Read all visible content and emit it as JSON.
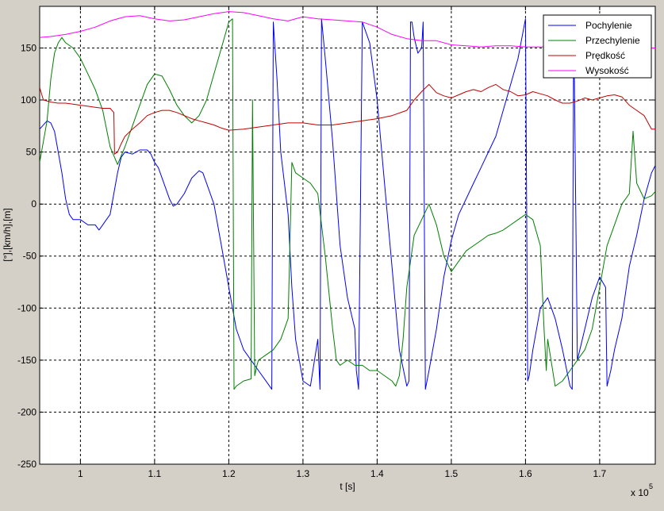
{
  "chart_data": {
    "type": "line",
    "title": "",
    "xlabel": "t [s]",
    "ylabel": "[°],[km/h],[m]",
    "x_multiplier_label": "x 10",
    "x_multiplier_exponent": "5",
    "xlim": [
      0.945,
      1.775
    ],
    "ylim": [
      -250,
      190
    ],
    "x_ticks": [
      1.0,
      1.1,
      1.2,
      1.3,
      1.4,
      1.5,
      1.6,
      1.7
    ],
    "x_tick_labels": [
      "1",
      "1.1",
      "1.2",
      "1.3",
      "1.4",
      "1.5",
      "1.6",
      "1.7"
    ],
    "y_ticks": [
      -250,
      -200,
      -150,
      -100,
      -50,
      0,
      50,
      100,
      150
    ],
    "y_tick_labels": [
      "-250",
      "-200",
      "-150",
      "-100",
      "-50",
      "0",
      "50",
      "100",
      "150"
    ],
    "grid": true,
    "legend_position": "top-right",
    "series": [
      {
        "name": "Pochylenie",
        "color": "#0000ff",
        "x": [
          0.945,
          0.955,
          0.96,
          0.965,
          0.97,
          0.975,
          0.98,
          0.985,
          0.99,
          1.0,
          1.01,
          1.02,
          1.025,
          1.03,
          1.035,
          1.04,
          1.045,
          1.05,
          1.055,
          1.06,
          1.07,
          1.08,
          1.09,
          1.095,
          1.1,
          1.105,
          1.11,
          1.12,
          1.125,
          1.13,
          1.14,
          1.15,
          1.16,
          1.165,
          1.17,
          1.18,
          1.19,
          1.2,
          1.21,
          1.22,
          1.23,
          1.24,
          1.25,
          1.258,
          1.26,
          1.265,
          1.27,
          1.28,
          1.285,
          1.29,
          1.3,
          1.31,
          1.32,
          1.323,
          1.325,
          1.33,
          1.34,
          1.345,
          1.35,
          1.36,
          1.37,
          1.372,
          1.375,
          1.38,
          1.39,
          1.4,
          1.41,
          1.42,
          1.43,
          1.44,
          1.443,
          1.445,
          1.447,
          1.45,
          1.455,
          1.46,
          1.462,
          1.465,
          1.47,
          1.48,
          1.49,
          1.5,
          1.51,
          1.52,
          1.53,
          1.54,
          1.55,
          1.56,
          1.57,
          1.58,
          1.59,
          1.6,
          1.603,
          1.605,
          1.61,
          1.62,
          1.63,
          1.64,
          1.65,
          1.66,
          1.663,
          1.665,
          1.67,
          1.68,
          1.69,
          1.7,
          1.708,
          1.71,
          1.715,
          1.72,
          1.73,
          1.74,
          1.75,
          1.76,
          1.77,
          1.775
        ],
        "y": [
          72,
          80,
          78,
          70,
          50,
          30,
          5,
          -10,
          -15,
          -15,
          -20,
          -20,
          -25,
          -20,
          -15,
          -10,
          10,
          30,
          45,
          50,
          48,
          52,
          52,
          48,
          40,
          35,
          25,
          5,
          -2,
          0,
          10,
          25,
          32,
          30,
          20,
          0,
          -40,
          -80,
          -120,
          -140,
          -150,
          -160,
          -170,
          -178,
          175,
          120,
          50,
          -10,
          -80,
          -130,
          -170,
          -175,
          -130,
          -178,
          178,
          140,
          60,
          10,
          -40,
          -90,
          -120,
          -160,
          -178,
          175,
          155,
          100,
          20,
          -60,
          -140,
          -175,
          -170,
          175,
          175,
          160,
          145,
          150,
          175,
          -178,
          -160,
          -120,
          -70,
          -35,
          -10,
          5,
          20,
          35,
          50,
          65,
          90,
          115,
          140,
          178,
          -170,
          -165,
          -140,
          -100,
          -90,
          -110,
          -140,
          -175,
          -178,
          178,
          -150,
          -120,
          -90,
          -70,
          -80,
          -175,
          -160,
          -140,
          -110,
          -60,
          -30,
          5,
          30,
          37
        ]
      },
      {
        "name": "Przechylenie",
        "color": "#008000",
        "x": [
          0.945,
          0.955,
          0.96,
          0.965,
          0.97,
          0.975,
          0.98,
          0.99,
          1.0,
          1.01,
          1.02,
          1.03,
          1.04,
          1.05,
          1.06,
          1.07,
          1.08,
          1.09,
          1.1,
          1.11,
          1.12,
          1.13,
          1.14,
          1.15,
          1.16,
          1.17,
          1.18,
          1.19,
          1.2,
          1.205,
          1.207,
          1.21,
          1.22,
          1.23,
          1.232,
          1.235,
          1.238,
          1.24,
          1.25,
          1.26,
          1.27,
          1.28,
          1.285,
          1.29,
          1.3,
          1.31,
          1.32,
          1.33,
          1.34,
          1.345,
          1.35,
          1.36,
          1.37,
          1.38,
          1.39,
          1.4,
          1.41,
          1.42,
          1.425,
          1.43,
          1.435,
          1.44,
          1.45,
          1.46,
          1.47,
          1.48,
          1.49,
          1.5,
          1.51,
          1.52,
          1.53,
          1.54,
          1.55,
          1.56,
          1.57,
          1.58,
          1.59,
          1.6,
          1.61,
          1.62,
          1.625,
          1.628,
          1.63,
          1.64,
          1.65,
          1.66,
          1.67,
          1.68,
          1.69,
          1.7,
          1.71,
          1.72,
          1.73,
          1.74,
          1.745,
          1.75,
          1.76,
          1.77,
          1.775
        ],
        "y": [
          40,
          80,
          120,
          145,
          155,
          160,
          155,
          150,
          140,
          125,
          110,
          90,
          55,
          38,
          55,
          75,
          95,
          115,
          125,
          123,
          110,
          95,
          85,
          78,
          85,
          100,
          125,
          150,
          175,
          178,
          -178,
          -175,
          -170,
          -168,
          100,
          -165,
          -155,
          -150,
          -145,
          -140,
          -130,
          -110,
          40,
          30,
          25,
          20,
          10,
          -50,
          -120,
          -150,
          -155,
          -150,
          -155,
          -155,
          -160,
          -160,
          -165,
          -170,
          -175,
          -165,
          -130,
          -80,
          -30,
          -15,
          0,
          -20,
          -50,
          -65,
          -55,
          -45,
          -40,
          -35,
          -30,
          -28,
          -25,
          -20,
          -15,
          -10,
          -15,
          -40,
          -120,
          -160,
          -130,
          -175,
          -170,
          -160,
          -150,
          -140,
          -120,
          -80,
          -40,
          -20,
          0,
          10,
          70,
          20,
          5,
          8,
          12
        ]
      },
      {
        "name": "Prędkość",
        "color": "#c00000",
        "x": [
          0.945,
          0.95,
          0.96,
          0.97,
          0.98,
          0.99,
          1.0,
          1.01,
          1.02,
          1.03,
          1.04,
          1.045,
          1.046,
          1.05,
          1.055,
          1.06,
          1.07,
          1.08,
          1.09,
          1.1,
          1.11,
          1.12,
          1.13,
          1.14,
          1.15,
          1.16,
          1.17,
          1.18,
          1.19,
          1.2,
          1.22,
          1.24,
          1.26,
          1.28,
          1.3,
          1.32,
          1.34,
          1.36,
          1.38,
          1.4,
          1.42,
          1.44,
          1.45,
          1.46,
          1.47,
          1.48,
          1.49,
          1.5,
          1.51,
          1.52,
          1.53,
          1.54,
          1.55,
          1.56,
          1.57,
          1.58,
          1.59,
          1.6,
          1.61,
          1.62,
          1.63,
          1.64,
          1.65,
          1.66,
          1.67,
          1.68,
          1.69,
          1.7,
          1.71,
          1.72,
          1.73,
          1.74,
          1.75,
          1.76,
          1.77,
          1.775
        ],
        "y": [
          112,
          100,
          98,
          97,
          97,
          96,
          95,
          94,
          93,
          92,
          92,
          88,
          48,
          50,
          58,
          65,
          72,
          78,
          85,
          88,
          90,
          90,
          88,
          85,
          82,
          80,
          78,
          76,
          73,
          71,
          72,
          74,
          76,
          78,
          78,
          76,
          76,
          78,
          80,
          82,
          85,
          90,
          100,
          108,
          115,
          107,
          104,
          102,
          105,
          108,
          110,
          108,
          112,
          115,
          110,
          108,
          104,
          105,
          108,
          106,
          104,
          100,
          97,
          97,
          99,
          102,
          100,
          102,
          104,
          105,
          103,
          95,
          90,
          85,
          72,
          72
        ]
      },
      {
        "name": "Wysokość",
        "color": "#ff00ff",
        "x": [
          0.945,
          0.96,
          0.98,
          1.0,
          1.02,
          1.04,
          1.06,
          1.08,
          1.1,
          1.12,
          1.14,
          1.16,
          1.18,
          1.2,
          1.22,
          1.24,
          1.26,
          1.28,
          1.3,
          1.32,
          1.34,
          1.36,
          1.38,
          1.4,
          1.42,
          1.44,
          1.46,
          1.48,
          1.5,
          1.52,
          1.54,
          1.56,
          1.58,
          1.6,
          1.62,
          1.64,
          1.66,
          1.68,
          1.7,
          1.72,
          1.74,
          1.76,
          1.775
        ],
        "y": [
          160,
          161,
          163,
          166,
          170,
          176,
          180,
          181,
          178,
          176,
          177,
          180,
          183,
          185,
          184,
          181,
          178,
          176,
          180,
          178,
          177,
          176,
          175,
          170,
          163,
          159,
          157,
          157,
          153,
          152,
          151,
          152,
          152,
          151,
          151,
          151,
          150,
          150,
          150,
          150,
          150,
          150,
          150
        ]
      }
    ]
  }
}
